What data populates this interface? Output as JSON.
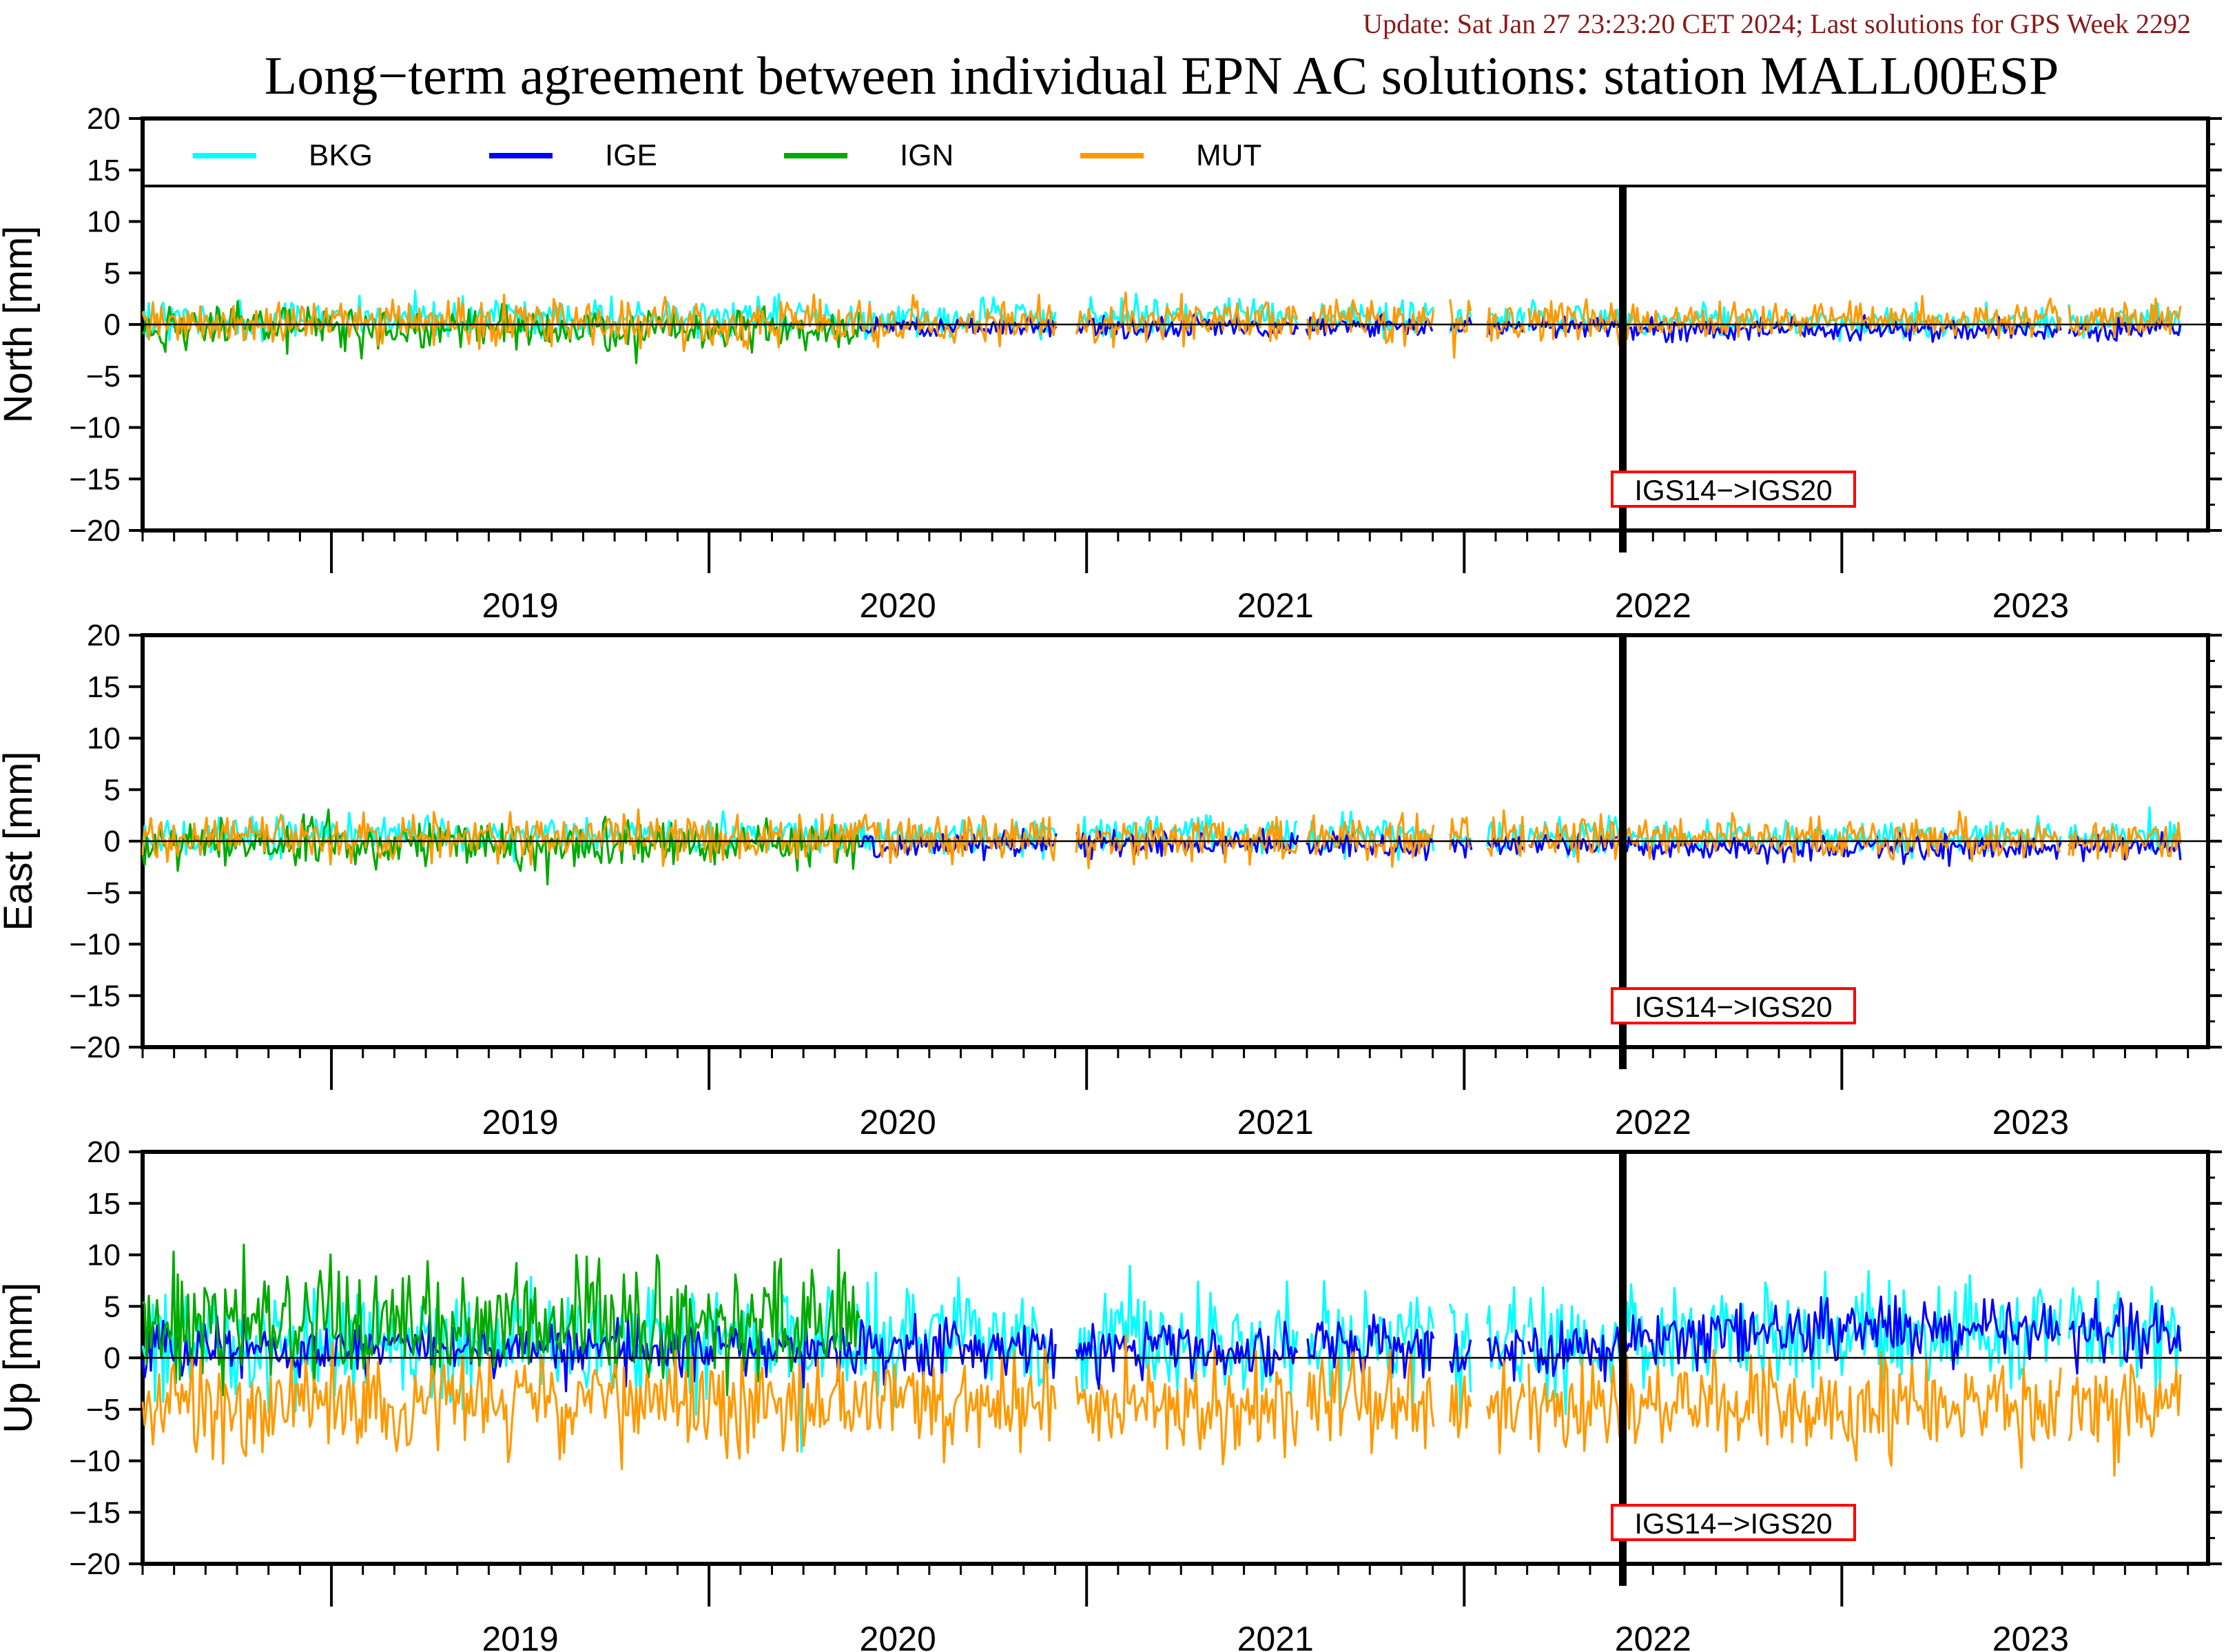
{
  "update_text": "Update: Sat Jan 27 23:23:20 CET 2024; Last solutions for GPS Week 2292",
  "title": "Long−term agreement between individual EPN AC solutions: station MALL00ESP",
  "colors": {
    "BKG": "#00ffff",
    "IGE": "#0000ff",
    "IGN": "#00aa00",
    "MUT": "#ff9900",
    "update_text": "#8b1a1a",
    "frame_change_box": "#ff0000"
  },
  "legend": [
    {
      "name": "BKG",
      "color": "#00ffff"
    },
    {
      "name": "IGE",
      "color": "#0000ff"
    },
    {
      "name": "IGN",
      "color": "#00aa00"
    },
    {
      "name": "MUT",
      "color": "#ff9900"
    }
  ],
  "chart_data": [
    {
      "type": "line",
      "ylabel": "North [mm]",
      "ylim": [
        -20,
        20
      ],
      "yticks": [
        "20",
        "15",
        "10",
        "5",
        "0",
        "−5",
        "−10",
        "−15",
        "−20"
      ],
      "xlim": [
        2018.5,
        2023.97
      ],
      "xticks": [
        "2019",
        "2020",
        "2021",
        "2022",
        "2023"
      ],
      "legend_position": "top",
      "frame_change": {
        "x": 2022.42,
        "label": "IGS14−>IGS20"
      },
      "series": [
        {
          "name": "BKG",
          "segments": [
            [
              2018.5,
              2022.42,
              0.6,
              0.9
            ],
            [
              2022.42,
              2023.9,
              0.4,
              0.7
            ]
          ]
        },
        {
          "name": "IGE",
          "segments": [
            [
              2020.4,
              2022.42,
              -0.2,
              0.5
            ],
            [
              2022.42,
              2023.9,
              -0.5,
              0.5
            ]
          ]
        },
        {
          "name": "IGN",
          "segments": [
            [
              2018.5,
              2020.4,
              -0.4,
              1.0
            ]
          ]
        },
        {
          "name": "MUT",
          "segments": [
            [
              2018.5,
              2022.42,
              0.2,
              1.1
            ],
            [
              2022.42,
              2023.9,
              0.4,
              0.9
            ]
          ]
        }
      ]
    },
    {
      "type": "line",
      "ylabel": "East [mm]",
      "ylim": [
        -20,
        20
      ],
      "yticks": [
        "20",
        "15",
        "10",
        "5",
        "0",
        "−5",
        "−10",
        "−15",
        "−20"
      ],
      "xlim": [
        2018.5,
        2023.97
      ],
      "xticks": [
        "2019",
        "2020",
        "2021",
        "2022",
        "2023"
      ],
      "frame_change": {
        "x": 2022.42,
        "label": "IGS14−>IGS20"
      },
      "series": [
        {
          "name": "BKG",
          "segments": [
            [
              2018.5,
              2022.42,
              0.5,
              0.9
            ],
            [
              2022.42,
              2023.9,
              0.4,
              0.7
            ]
          ]
        },
        {
          "name": "IGE",
          "segments": [
            [
              2020.4,
              2022.42,
              -0.3,
              0.6
            ],
            [
              2022.42,
              2023.9,
              -0.6,
              0.6
            ]
          ]
        },
        {
          "name": "IGN",
          "segments": [
            [
              2018.5,
              2020.4,
              -0.3,
              1.1
            ]
          ]
        },
        {
          "name": "MUT",
          "segments": [
            [
              2018.5,
              2022.42,
              0.3,
              1.1
            ],
            [
              2022.42,
              2023.9,
              0.2,
              0.9
            ]
          ]
        }
      ]
    },
    {
      "type": "line",
      "ylabel": "Up [mm]",
      "ylim": [
        -20,
        20
      ],
      "yticks": [
        "20",
        "15",
        "10",
        "5",
        "0",
        "−5",
        "−10",
        "−15",
        "−20"
      ],
      "xlim": [
        2018.5,
        2023.97
      ],
      "xticks": [
        "2019",
        "2020",
        "2021",
        "2022",
        "2023"
      ],
      "frame_change": {
        "x": 2022.42,
        "label": "IGS14−>IGS20"
      },
      "series": [
        {
          "name": "BKG",
          "segments": [
            [
              2018.5,
              2022.42,
              1.5,
              2.6
            ],
            [
              2022.42,
              2023.9,
              2.5,
              2.3
            ]
          ]
        },
        {
          "name": "IGE",
          "segments": [
            [
              2018.5,
              2022.42,
              0.8,
              1.4
            ],
            [
              2022.42,
              2023.9,
              2.5,
              1.6
            ]
          ]
        },
        {
          "name": "IGN",
          "segments": [
            [
              2018.5,
              2020.4,
              3.5,
              2.8
            ]
          ]
        },
        {
          "name": "MUT",
          "segments": [
            [
              2018.5,
              2022.42,
              -4.5,
              2.4
            ],
            [
              2022.42,
              2023.9,
              -5.0,
              2.2
            ]
          ]
        }
      ]
    }
  ]
}
